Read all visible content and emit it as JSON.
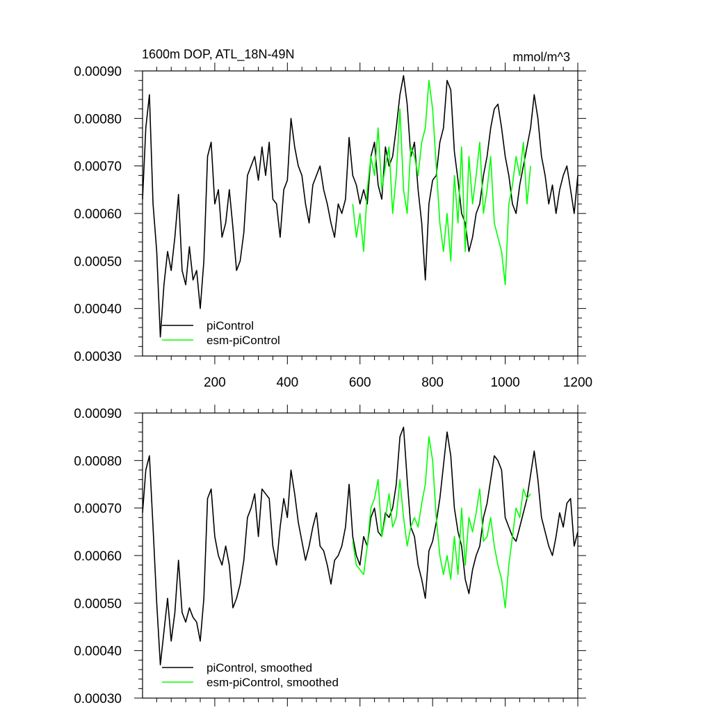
{
  "chart_data": [
    {
      "type": "line",
      "title": "1600m DOP, ATL_18N-49N",
      "units": "mmol/m^3",
      "xlabel": "",
      "ylabel": "",
      "xlim": [
        1,
        1200
      ],
      "ylim": [
        0.0003,
        0.0009
      ],
      "x_ticks": [
        200,
        400,
        600,
        800,
        1000,
        1200
      ],
      "x_tick_labels": [
        "200",
        "400",
        "600",
        "800",
        "1000",
        "1200"
      ],
      "y_ticks": [
        0.0003,
        0.0004,
        0.0005,
        0.0006,
        0.0007,
        0.0008,
        0.0009
      ],
      "y_tick_labels": [
        "0.00030",
        "0.00040",
        "0.00050",
        "0.00060",
        "0.00070",
        "0.00080",
        "0.00090"
      ],
      "legend_position": "bottom-left",
      "series": [
        {
          "name": "piControl",
          "color": "#000000",
          "x": [
            1,
            10,
            20,
            30,
            40,
            50,
            60,
            70,
            80,
            90,
            100,
            110,
            120,
            130,
            140,
            150,
            160,
            170,
            180,
            190,
            200,
            210,
            220,
            230,
            240,
            250,
            260,
            270,
            280,
            290,
            300,
            310,
            320,
            330,
            340,
            350,
            360,
            370,
            380,
            390,
            400,
            410,
            420,
            430,
            440,
            450,
            460,
            470,
            480,
            490,
            500,
            510,
            520,
            530,
            540,
            550,
            560,
            570,
            580,
            590,
            600,
            610,
            620,
            630,
            640,
            650,
            660,
            670,
            680,
            690,
            700,
            710,
            720,
            730,
            740,
            750,
            760,
            770,
            780,
            790,
            800,
            810,
            820,
            830,
            840,
            850,
            860,
            870,
            880,
            890,
            900,
            910,
            920,
            930,
            940,
            950,
            960,
            970,
            980,
            990,
            1000,
            1010,
            1020,
            1030,
            1040,
            1050,
            1060,
            1070,
            1080,
            1090,
            1100,
            1110,
            1120,
            1130,
            1140,
            1150,
            1160,
            1170,
            1180,
            1190,
            1200
          ],
          "values": [
            0.00063,
            0.00078,
            0.00085,
            0.00062,
            0.00052,
            0.00034,
            0.00045,
            0.00052,
            0.00048,
            0.00055,
            0.00064,
            0.00048,
            0.00045,
            0.00053,
            0.00046,
            0.00048,
            0.0004,
            0.0005,
            0.00072,
            0.00075,
            0.00062,
            0.00065,
            0.00055,
            0.00058,
            0.00065,
            0.00057,
            0.00048,
            0.0005,
            0.00056,
            0.00068,
            0.0007,
            0.00072,
            0.00067,
            0.00074,
            0.00068,
            0.00075,
            0.00063,
            0.00062,
            0.00055,
            0.00065,
            0.00067,
            0.0008,
            0.00074,
            0.0007,
            0.00068,
            0.00062,
            0.00058,
            0.00066,
            0.00068,
            0.0007,
            0.00065,
            0.00062,
            0.00058,
            0.00055,
            0.00062,
            0.0006,
            0.00063,
            0.00076,
            0.00068,
            0.00066,
            0.00062,
            0.00065,
            0.00062,
            0.00072,
            0.00075,
            0.00066,
            0.00063,
            0.00074,
            0.0007,
            0.00072,
            0.00078,
            0.00085,
            0.00089,
            0.00083,
            0.00072,
            0.00075,
            0.00065,
            0.00058,
            0.00046,
            0.00062,
            0.00067,
            0.00068,
            0.00075,
            0.00078,
            0.00088,
            0.00086,
            0.00073,
            0.00067,
            0.0006,
            0.00058,
            0.00052,
            0.00055,
            0.0006,
            0.00062,
            0.00068,
            0.00072,
            0.00078,
            0.00082,
            0.00083,
            0.00078,
            0.00072,
            0.00068,
            0.00062,
            0.0006,
            0.00066,
            0.0007,
            0.00074,
            0.00078,
            0.00085,
            0.0008,
            0.00072,
            0.00068,
            0.00062,
            0.00066,
            0.0006,
            0.00065,
            0.00068,
            0.0007,
            0.00065,
            0.0006,
            0.00068
          ]
        },
        {
          "name": "esm-piControl",
          "color": "#00ff00",
          "x": [
            580,
            590,
            600,
            610,
            620,
            630,
            640,
            650,
            660,
            670,
            680,
            690,
            700,
            710,
            720,
            730,
            740,
            750,
            760,
            770,
            780,
            790,
            800,
            810,
            820,
            830,
            840,
            850,
            860,
            870,
            880,
            890,
            900,
            910,
            920,
            930,
            940,
            950,
            960,
            970,
            980,
            990,
            1000,
            1010,
            1020,
            1030,
            1040,
            1050,
            1060,
            1070
          ],
          "values": [
            0.00062,
            0.00055,
            0.0006,
            0.00052,
            0.00065,
            0.00072,
            0.00068,
            0.00078,
            0.00065,
            0.0007,
            0.00074,
            0.0006,
            0.00068,
            0.00082,
            0.00065,
            0.0006,
            0.00074,
            0.00072,
            0.00068,
            0.00075,
            0.00078,
            0.00088,
            0.00082,
            0.0007,
            0.00058,
            0.00052,
            0.0006,
            0.0005,
            0.00068,
            0.00058,
            0.00074,
            0.00052,
            0.00072,
            0.00062,
            0.00068,
            0.00075,
            0.0006,
            0.00065,
            0.00072,
            0.00058,
            0.00055,
            0.00052,
            0.00045,
            0.00062,
            0.00066,
            0.00072,
            0.00068,
            0.00075,
            0.00062,
            0.0007
          ]
        }
      ]
    },
    {
      "type": "line",
      "title": "",
      "xlabel": "",
      "ylabel": "",
      "xlim": [
        1,
        1200
      ],
      "ylim": [
        0.0003,
        0.0009
      ],
      "y_ticks": [
        0.0003,
        0.0004,
        0.0005,
        0.0006,
        0.0007,
        0.0008,
        0.0009
      ],
      "y_tick_labels": [
        "0.00030",
        "0.00040",
        "0.00050",
        "0.00060",
        "0.00070",
        "0.00080",
        "0.00090"
      ],
      "legend_position": "bottom-left",
      "series": [
        {
          "name": "piControl, smoothed",
          "color": "#000000",
          "x": [
            1,
            10,
            20,
            30,
            40,
            50,
            60,
            70,
            80,
            90,
            100,
            110,
            120,
            130,
            140,
            150,
            160,
            170,
            180,
            190,
            200,
            210,
            220,
            230,
            240,
            250,
            260,
            270,
            280,
            290,
            300,
            310,
            320,
            330,
            340,
            350,
            360,
            370,
            380,
            390,
            400,
            410,
            420,
            430,
            440,
            450,
            460,
            470,
            480,
            490,
            500,
            510,
            520,
            530,
            540,
            550,
            560,
            570,
            580,
            590,
            600,
            610,
            620,
            630,
            640,
            650,
            660,
            670,
            680,
            690,
            700,
            710,
            720,
            730,
            740,
            750,
            760,
            770,
            780,
            790,
            800,
            810,
            820,
            830,
            840,
            850,
            860,
            870,
            880,
            890,
            900,
            910,
            920,
            930,
            940,
            950,
            960,
            970,
            980,
            990,
            1000,
            1010,
            1020,
            1030,
            1040,
            1050,
            1060,
            1070,
            1080,
            1090,
            1100,
            1110,
            1120,
            1130,
            1140,
            1150,
            1160,
            1170,
            1180,
            1190,
            1200
          ],
          "values": [
            0.00069,
            0.00078,
            0.00081,
            0.00066,
            0.0005,
            0.00037,
            0.00044,
            0.00051,
            0.00042,
            0.00048,
            0.00059,
            0.00048,
            0.00046,
            0.00049,
            0.00047,
            0.00046,
            0.00042,
            0.00051,
            0.00072,
            0.00074,
            0.00064,
            0.0006,
            0.00058,
            0.00062,
            0.00058,
            0.00049,
            0.00051,
            0.00054,
            0.00059,
            0.00068,
            0.0007,
            0.00073,
            0.00064,
            0.00074,
            0.00073,
            0.00072,
            0.00062,
            0.00058,
            0.00066,
            0.00072,
            0.00068,
            0.00078,
            0.00073,
            0.00067,
            0.00063,
            0.00059,
            0.00062,
            0.00066,
            0.00069,
            0.00062,
            0.00061,
            0.00058,
            0.00054,
            0.00059,
            0.0006,
            0.00062,
            0.00066,
            0.00075,
            0.00064,
            0.0006,
            0.00058,
            0.00064,
            0.00062,
            0.00068,
            0.0007,
            0.00065,
            0.00064,
            0.00069,
            0.00068,
            0.0007,
            0.00075,
            0.00085,
            0.00087,
            0.00076,
            0.00066,
            0.00064,
            0.00058,
            0.00055,
            0.00051,
            0.00061,
            0.00063,
            0.00067,
            0.00072,
            0.00079,
            0.00086,
            0.00081,
            0.0007,
            0.00065,
            0.00062,
            0.00055,
            0.00052,
            0.00057,
            0.0006,
            0.00062,
            0.00068,
            0.00071,
            0.00076,
            0.00081,
            0.0008,
            0.00078,
            0.00068,
            0.00066,
            0.00064,
            0.00063,
            0.00066,
            0.00069,
            0.00072,
            0.00077,
            0.00082,
            0.00076,
            0.00068,
            0.00065,
            0.00062,
            0.0006,
            0.00064,
            0.00069,
            0.00066,
            0.00071,
            0.00072,
            0.00062,
            0.00065
          ]
        },
        {
          "name": "esm-piControl, smoothed",
          "color": "#00ff00",
          "x": [
            580,
            590,
            600,
            610,
            620,
            630,
            640,
            650,
            660,
            670,
            680,
            690,
            700,
            710,
            720,
            730,
            740,
            750,
            760,
            770,
            780,
            790,
            800,
            810,
            820,
            830,
            840,
            850,
            860,
            870,
            880,
            890,
            900,
            910,
            920,
            930,
            940,
            950,
            960,
            970,
            980,
            990,
            1000,
            1010,
            1020,
            1030,
            1040,
            1050,
            1060,
            1070
          ],
          "values": [
            0.00063,
            0.00058,
            0.00057,
            0.00056,
            0.00062,
            0.0007,
            0.00072,
            0.00076,
            0.00064,
            0.00068,
            0.00073,
            0.00066,
            0.00068,
            0.00076,
            0.00068,
            0.00062,
            0.00066,
            0.00068,
            0.00066,
            0.00071,
            0.00075,
            0.00085,
            0.0008,
            0.00068,
            0.0006,
            0.00056,
            0.0006,
            0.00055,
            0.00064,
            0.00056,
            0.0007,
            0.00058,
            0.00068,
            0.00065,
            0.00069,
            0.00074,
            0.00063,
            0.00064,
            0.00068,
            0.00062,
            0.00058,
            0.00055,
            0.00049,
            0.00058,
            0.00064,
            0.0007,
            0.00068,
            0.00074,
            0.00072,
            0.00073
          ]
        }
      ]
    }
  ]
}
